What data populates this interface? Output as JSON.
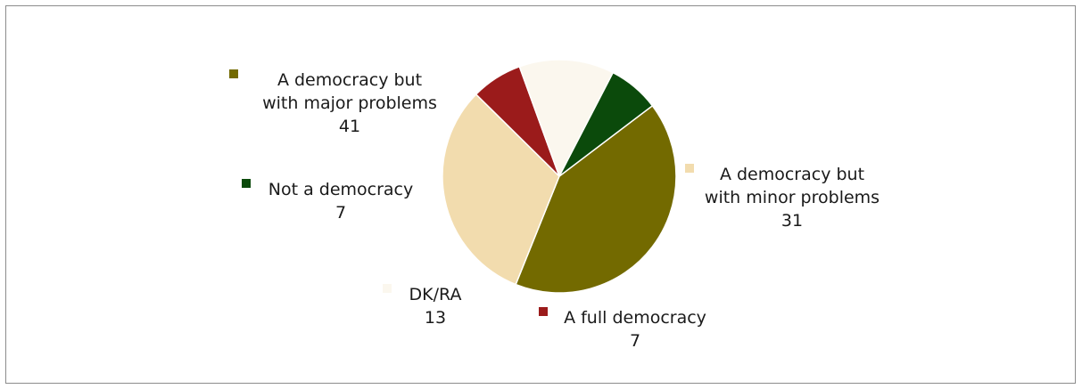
{
  "chart_data": {
    "type": "pie",
    "title": "",
    "slices": [
      {
        "label": "A democracy but with major problems",
        "value": 41,
        "color": "#736a00",
        "label_lines": [
          "A democracy but",
          "with major problems"
        ]
      },
      {
        "label": "A democracy but with minor problems",
        "value": 31,
        "color": "#f2dcae",
        "label_lines": [
          "A democracy but",
          "with minor problems"
        ]
      },
      {
        "label": "A full democracy",
        "value": 7,
        "color": "#9b1b1b",
        "label_lines": [
          "A full democracy"
        ]
      },
      {
        "label": "DK/RA",
        "value": 13,
        "color": "#fbf7ee",
        "label_lines": [
          "DK/RA"
        ]
      },
      {
        "label": "Not a democracy",
        "value": 7,
        "color": "#0b4a0b",
        "label_lines": [
          "Not a democracy"
        ]
      }
    ]
  }
}
